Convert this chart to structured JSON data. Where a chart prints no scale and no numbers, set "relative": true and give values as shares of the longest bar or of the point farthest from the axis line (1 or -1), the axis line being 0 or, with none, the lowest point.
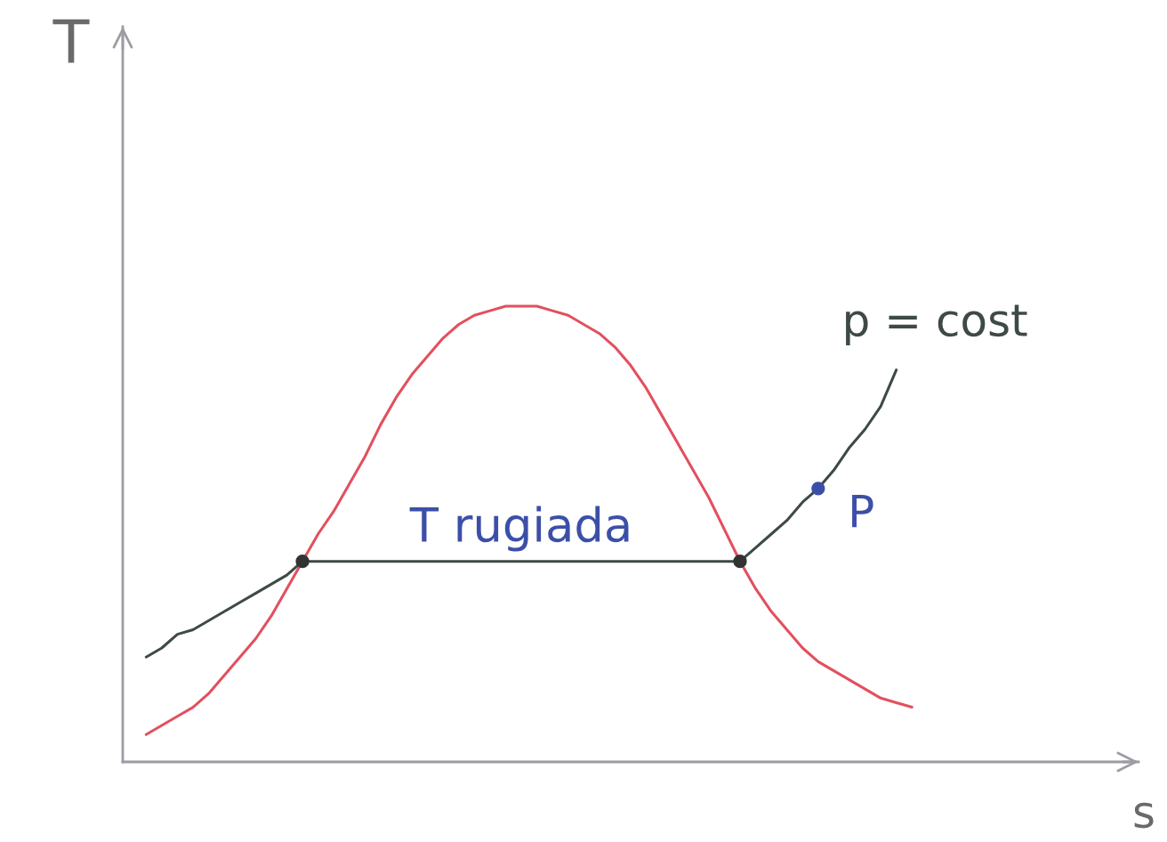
{
  "chart_data": {
    "type": "line",
    "relative": true,
    "tick_labels": false,
    "xlabel": "s",
    "ylabel": "T",
    "categories": [
      null,
      null,
      null,
      null,
      null,
      null,
      null,
      null,
      null,
      null,
      null,
      null,
      null,
      null,
      null,
      null,
      null,
      null,
      null,
      null,
      null,
      null,
      null,
      null,
      null,
      null,
      null,
      null,
      null,
      null,
      null,
      null,
      null,
      null,
      null,
      null,
      null,
      null,
      null,
      null,
      null,
      null,
      null,
      null,
      null,
      null,
      null,
      null,
      null,
      null,
      null,
      null,
      null,
      null,
      null,
      null,
      null,
      null,
      null,
      null,
      null,
      null,
      null,
      null,
      null
    ],
    "series": [
      {
        "color": "#e2505e",
        "values": [
          null,
          0.06,
          0.08,
          0.1,
          0.12,
          0.15,
          0.19,
          0.23,
          0.27,
          0.32,
          0.38,
          0.44,
          0.5,
          0.55,
          0.61,
          0.67,
          0.74,
          0.8,
          0.85,
          0.89,
          0.93,
          0.96,
          0.98,
          0.99,
          1.0,
          1.0,
          1.0,
          0.99,
          0.98,
          0.96,
          0.94,
          0.91,
          0.87,
          0.82,
          0.76,
          0.7,
          0.64,
          0.58,
          0.51,
          0.44,
          0.38,
          0.33,
          0.29,
          0.25,
          0.22,
          0.2,
          0.18,
          0.16,
          0.14,
          0.13,
          0.12,
          null,
          null,
          null,
          null,
          null,
          null,
          null,
          null,
          null,
          null,
          null,
          null,
          null,
          null
        ]
      },
      {
        "name": "p = cost",
        "color": "#3e4a45",
        "values": [
          null,
          0.23,
          0.25,
          0.28,
          0.29,
          0.31,
          0.33,
          0.35,
          0.37,
          0.39,
          0.41,
          0.44,
          0.44,
          0.44,
          0.44,
          0.44,
          0.44,
          0.44,
          0.44,
          0.44,
          0.44,
          0.44,
          0.44,
          0.44,
          0.44,
          0.44,
          0.44,
          0.44,
          0.44,
          0.44,
          0.44,
          0.44,
          0.44,
          0.44,
          0.44,
          0.44,
          0.44,
          0.44,
          0.44,
          0.44,
          0.47,
          0.5,
          0.53,
          0.57,
          0.6,
          0.64,
          0.69,
          0.73,
          0.78,
          0.86,
          null,
          null,
          null,
          null,
          null,
          null,
          null,
          null,
          null,
          null,
          null,
          null,
          null,
          null,
          null
        ]
      },
      {
        "marker": "circle",
        "color": "#333333",
        "values": [
          null,
          null,
          null,
          null,
          null,
          null,
          null,
          null,
          null,
          null,
          null,
          0.44,
          null,
          null,
          null,
          null,
          null,
          null,
          null,
          null,
          null,
          null,
          null,
          null,
          null,
          null,
          null,
          null,
          null,
          null,
          null,
          null,
          null,
          null,
          null,
          null,
          null,
          null,
          null,
          null,
          null,
          null,
          null,
          null,
          null,
          null,
          null,
          null,
          null,
          null,
          null,
          null,
          null,
          null,
          null,
          null,
          null,
          null,
          null,
          null,
          null,
          null,
          null,
          null,
          null
        ]
      },
      {
        "marker": "circle",
        "color": "#333333",
        "values": [
          null,
          null,
          null,
          null,
          null,
          null,
          null,
          null,
          null,
          null,
          null,
          null,
          null,
          null,
          null,
          null,
          null,
          null,
          null,
          null,
          null,
          null,
          null,
          null,
          null,
          null,
          null,
          null,
          null,
          null,
          null,
          null,
          null,
          null,
          null,
          null,
          null,
          null,
          null,
          0.44,
          null,
          null,
          null,
          null,
          null,
          null,
          null,
          null,
          null,
          null,
          null,
          null,
          null,
          null,
          null,
          null,
          null,
          null,
          null,
          null,
          null,
          null,
          null,
          null,
          null
        ]
      },
      {
        "marker": "circle",
        "name": "P",
        "color": "#3c4fa8",
        "values": [
          null,
          null,
          null,
          null,
          null,
          null,
          null,
          null,
          null,
          null,
          null,
          null,
          null,
          null,
          null,
          null,
          null,
          null,
          null,
          null,
          null,
          null,
          null,
          null,
          null,
          null,
          null,
          null,
          null,
          null,
          null,
          null,
          null,
          null,
          null,
          null,
          null,
          null,
          null,
          null,
          null,
          null,
          null,
          null,
          0.6,
          null,
          null,
          null,
          null,
          null,
          null,
          null,
          null,
          null,
          null,
          null,
          null,
          null,
          null,
          null,
          null,
          null,
          null,
          null,
          null
        ]
      }
    ],
    "annotations": [
      "T rugiada"
    ]
  }
}
